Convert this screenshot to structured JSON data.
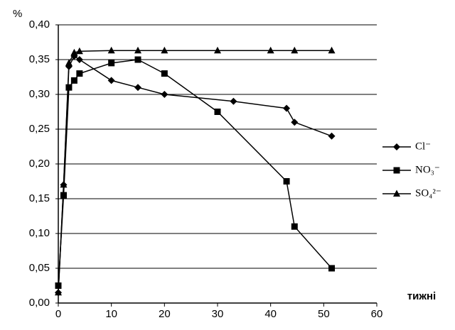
{
  "chart_data": {
    "type": "line",
    "y_label": "%",
    "x_label": "тижні",
    "xlim": [
      0,
      60
    ],
    "xticks": [
      0,
      10,
      20,
      30,
      40,
      50,
      60
    ],
    "ylim": [
      0,
      0.4
    ],
    "yticks": [
      {
        "value": 0,
        "label": "0,00"
      },
      {
        "value": 0.05,
        "label": "0,05"
      },
      {
        "value": 0.1,
        "label": "0,10"
      },
      {
        "value": 0.15,
        "label": "0,15"
      },
      {
        "value": 0.2,
        "label": "0,20"
      },
      {
        "value": 0.25,
        "label": "0,25"
      },
      {
        "value": 0.3,
        "label": "0,30"
      },
      {
        "value": 0.35,
        "label": "0,35"
      },
      {
        "value": 0.4,
        "label": "0,40"
      }
    ],
    "grid": true,
    "legend": "right",
    "series": [
      {
        "name": "Cl⁻",
        "color": "#000000",
        "marker": "diamond",
        "x": [
          0,
          1,
          2,
          3,
          4,
          10,
          15,
          20,
          33,
          43,
          44.5,
          51.5
        ],
        "values": [
          0.015,
          0.17,
          0.34,
          0.355,
          0.35,
          0.32,
          0.31,
          0.3,
          0.29,
          0.28,
          0.26,
          0.24
        ]
      },
      {
        "name": "NO₃⁻",
        "color": "#000000",
        "marker": "square",
        "x": [
          0,
          1,
          2,
          3,
          4,
          10,
          15,
          20,
          30,
          43,
          44.5,
          51.5
        ],
        "values": [
          0.025,
          0.155,
          0.31,
          0.32,
          0.33,
          0.345,
          0.35,
          0.33,
          0.275,
          0.175,
          0.11,
          0.05
        ]
      },
      {
        "name": "SO₄²⁻",
        "color": "#000000",
        "marker": "triangle",
        "x": [
          0,
          1,
          2,
          3,
          4,
          10,
          15,
          20,
          30,
          40,
          44.5,
          51.5
        ],
        "values": [
          0.015,
          0.17,
          0.345,
          0.36,
          0.362,
          0.363,
          0.363,
          0.363,
          0.363,
          0.363,
          0.363,
          0.363
        ]
      }
    ]
  }
}
